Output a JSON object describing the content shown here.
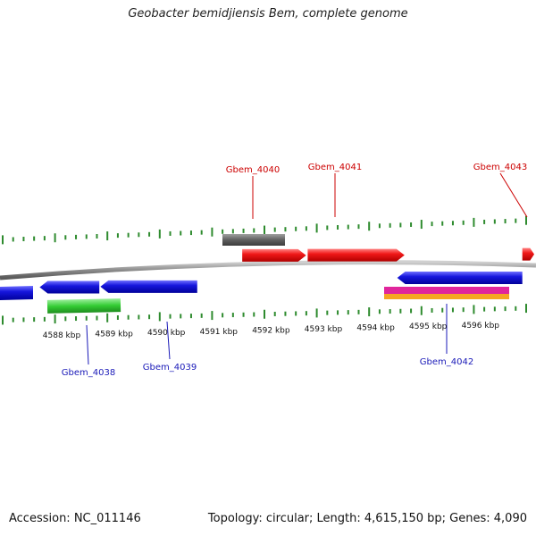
{
  "title": "Geobacter bemidjiensis Bem, complete genome",
  "footer": {
    "accession": "Accession: NC_011146",
    "summary": "Topology: circular; Length: 4,615,150 bp; Genes: 4,090"
  },
  "tick_unit": "kbp",
  "ticks": [
    {
      "kbp": 4588,
      "label": "4588 kbp"
    },
    {
      "kbp": 4589,
      "label": "4589 kbp"
    },
    {
      "kbp": 4590,
      "label": "4590 kbp"
    },
    {
      "kbp": 4591,
      "label": "4591 kbp"
    },
    {
      "kbp": 4592,
      "label": "4592 kbp"
    },
    {
      "kbp": 4593,
      "label": "4593 kbp"
    },
    {
      "kbp": 4594,
      "label": "4594 kbp"
    },
    {
      "kbp": 4595,
      "label": "4595 kbp"
    },
    {
      "kbp": 4596,
      "label": "4596 kbp"
    }
  ],
  "genes": [
    {
      "label": "Gbem_4038",
      "strand": "reverse",
      "start_kbp": 4587.58,
      "end_kbp": 4588.72
    },
    {
      "label": "Gbem_4039",
      "strand": "reverse",
      "start_kbp": 4588.74,
      "end_kbp": 4590.59
    },
    {
      "label": "Gbem_4040",
      "strand": "forward",
      "start_kbp": 4591.45,
      "end_kbp": 4592.67
    },
    {
      "label": "Gbem_4041",
      "strand": "forward",
      "start_kbp": 4592.7,
      "end_kbp": 4594.55
    },
    {
      "label": "Gbem_4042",
      "strand": "reverse",
      "start_kbp": 4594.41,
      "end_kbp": 4596.8
    },
    {
      "label": "Gbem_4043",
      "strand": "forward",
      "start_kbp": 4596.8,
      "end_kbp": 4597.2
    }
  ],
  "colors": {
    "forward_gene": "#e8141a",
    "reverse_gene": "#1414d4",
    "forward_label": "#cc0000",
    "reverse_label": "#1a1ab8",
    "ticks": "#2e8b2e",
    "backbone": "#8c8c8c",
    "rna_track": "#5a5a5a",
    "feature_green": "#33cc33",
    "feature_magenta": "#e0259c",
    "feature_orange": "#f5a623"
  }
}
